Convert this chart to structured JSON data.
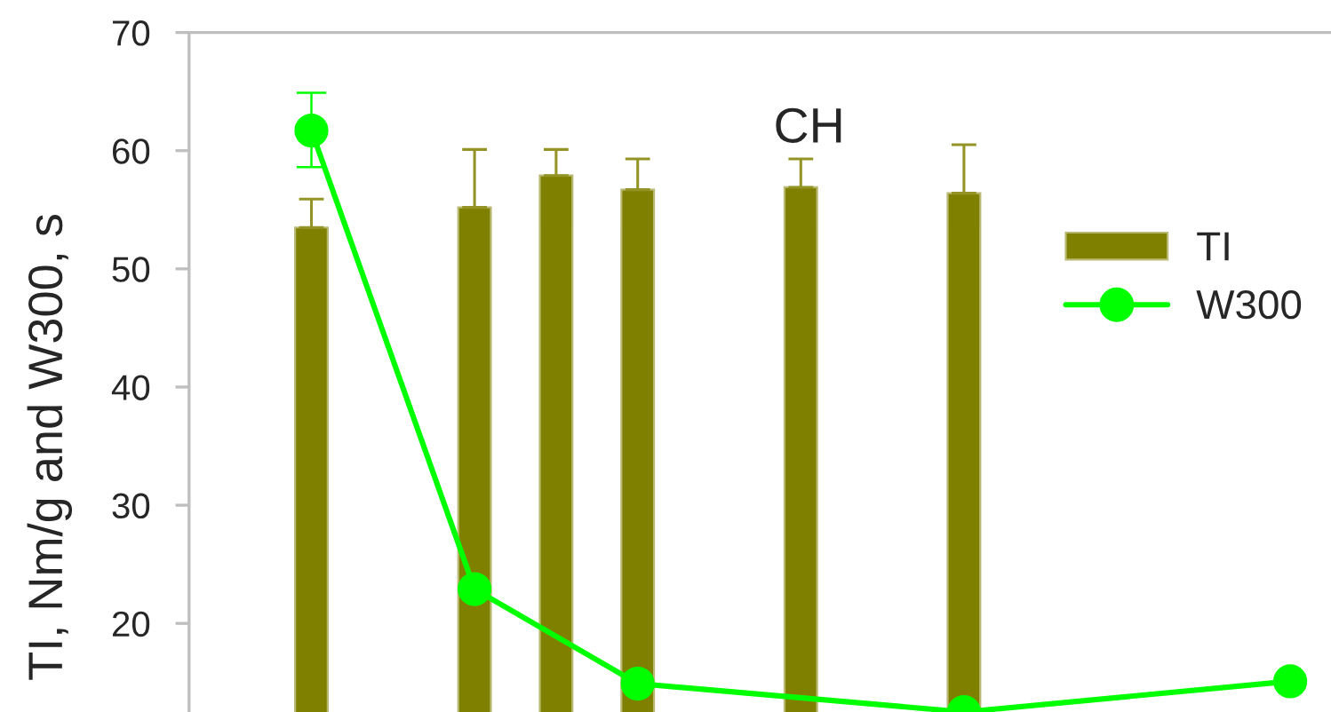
{
  "chart_data": {
    "type": "bar",
    "title": "CH",
    "ylabel": "TI, Nm/g and W300, s",
    "categories": [
      null,
      null,
      null,
      null,
      null,
      null,
      null,
      null,
      null,
      null,
      null,
      null,
      null,
      null
    ],
    "series": [
      {
        "name": "TI",
        "color": "#808000",
        "values": [
          null,
          53.5,
          null,
          55.2,
          57.9,
          56.7,
          null,
          56.9,
          null,
          56.4,
          null,
          null,
          null,
          null
        ],
        "errors": [
          null,
          [
            53.5,
            55.9
          ],
          null,
          [
            55.2,
            60.1
          ],
          [
            57.9,
            60.1
          ],
          [
            56.7,
            59.3
          ],
          null,
          [
            56.9,
            59.3
          ],
          null,
          [
            56.4,
            60.5
          ],
          null,
          null,
          null,
          null
        ]
      },
      {
        "name": "W300",
        "type": "line",
        "color": "#00ff00",
        "marker": "circle",
        "line_style": "solid",
        "values": [
          null,
          61.7,
          null,
          22.9,
          null,
          14.9,
          null,
          null,
          null,
          12.5,
          null,
          null,
          null,
          15.1
        ],
        "errors": [
          null,
          [
            58.6,
            64.9
          ],
          null,
          null,
          null,
          null,
          null,
          null,
          null,
          null,
          null,
          null,
          null,
          null
        ]
      }
    ],
    "ylim": [
      12.5,
      70
    ],
    "yticks": [
      20,
      30,
      40,
      50,
      60,
      70
    ],
    "tick_labels": "y",
    "legend": "top right"
  }
}
